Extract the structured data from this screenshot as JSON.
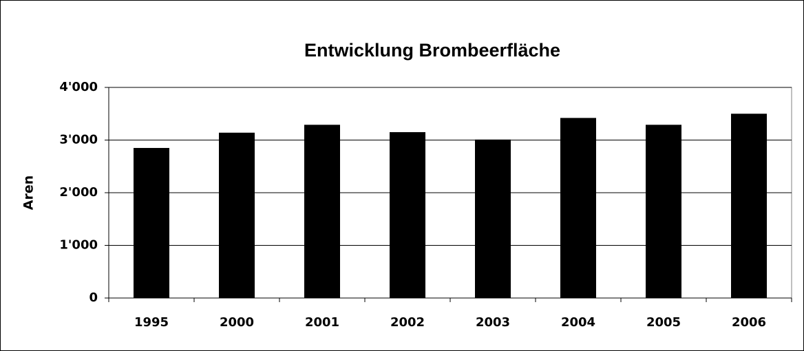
{
  "chart_data": {
    "type": "bar",
    "title": "Entwicklung Brombeerfläche",
    "y_label": "Aren",
    "categories": [
      "1995",
      "2000",
      "2001",
      "2002",
      "2003",
      "2004",
      "2005",
      "2006"
    ],
    "values": [
      2850,
      3140,
      3290,
      3150,
      3010,
      3420,
      3290,
      3500
    ],
    "color": "#000000",
    "ylim": [
      0,
      4000
    ],
    "yticks": [
      0,
      {
        "value": 1000,
        "label": "1'000"
      },
      {
        "value": 2000,
        "label": "2'000"
      },
      {
        "value": 3000,
        "label": "3'000"
      },
      {
        "value": 4000,
        "label": "4'000"
      }
    ],
    "grid": true
  }
}
